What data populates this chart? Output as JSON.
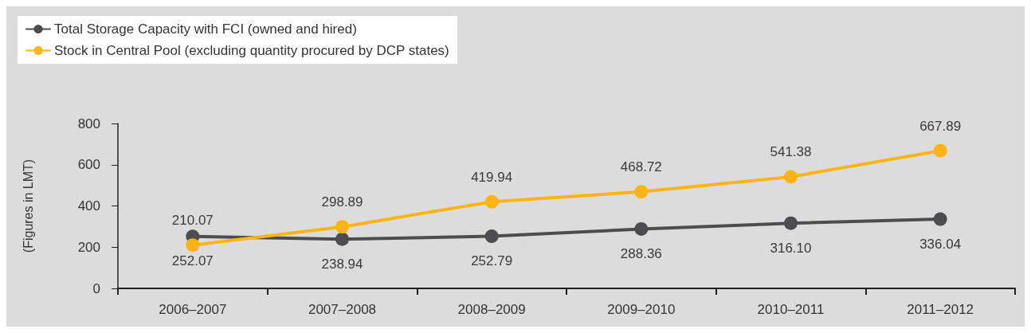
{
  "chart_data": {
    "type": "line",
    "ylabel": "(Figures in LMT)",
    "categories": [
      "2006–2007",
      "2007–2008",
      "2008–2009",
      "2009–2010",
      "2010–2011",
      "2011–2012"
    ],
    "series": [
      {
        "name": "Total Storage Capacity with FCI (owned and hired)",
        "color": "#4d4d4f",
        "values": [
          252.07,
          238.94,
          252.79,
          288.36,
          316.1,
          336.04
        ],
        "value_labels": [
          "252.07",
          "238.94",
          "252.79",
          "288.36",
          "316.10",
          "336.04"
        ]
      },
      {
        "name": "Stock in Central Pool (excluding quantity procured by DCP states)",
        "color": "#fdb515",
        "values": [
          210.07,
          298.89,
          419.94,
          468.72,
          541.38,
          667.89
        ],
        "value_labels": [
          "210.07",
          "298.89",
          "419.94",
          "468.72",
          "541.38",
          "667.89"
        ]
      }
    ],
    "ylim": [
      0,
      800
    ],
    "yticks": [
      0,
      200,
      400,
      600,
      800
    ],
    "grid": false,
    "legend": "top left",
    "marker": "circle",
    "line_style": "solid"
  }
}
